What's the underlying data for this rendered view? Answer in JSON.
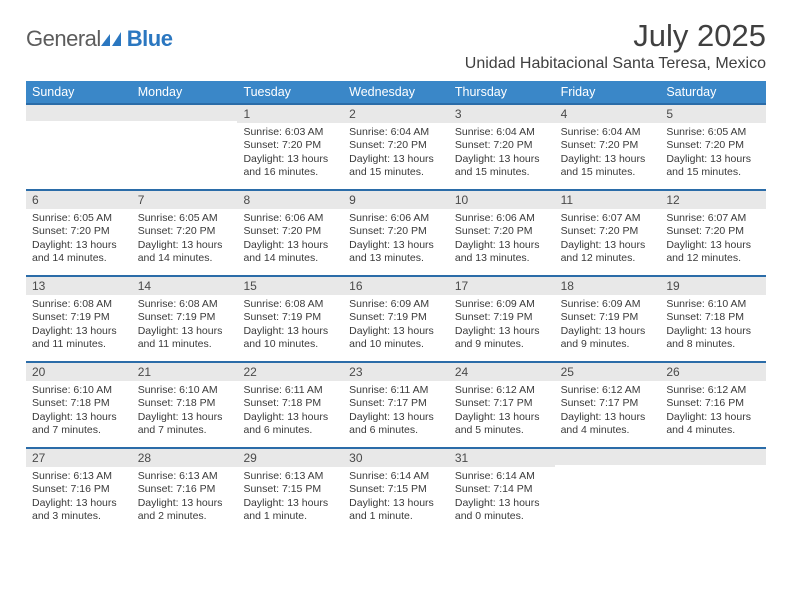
{
  "logo": {
    "text_general": "General",
    "text_blue": "Blue",
    "icon_fill": "#2b77c0"
  },
  "header": {
    "month_title": "July 2025",
    "location": "Unidad Habitacional Santa Teresa, Mexico"
  },
  "styling": {
    "header_bg": "#3a87c8",
    "header_fg": "#ffffff",
    "daynum_bg": "#e8e8e8",
    "daynum_border": "#2b6ca8",
    "body_text": "#3a3a3a",
    "title_color": "#404040"
  },
  "days_of_week": [
    "Sunday",
    "Monday",
    "Tuesday",
    "Wednesday",
    "Thursday",
    "Friday",
    "Saturday"
  ],
  "weeks": [
    [
      {
        "n": "",
        "sunrise": "",
        "sunset": "",
        "daylight": ""
      },
      {
        "n": "",
        "sunrise": "",
        "sunset": "",
        "daylight": ""
      },
      {
        "n": "1",
        "sunrise": "Sunrise: 6:03 AM",
        "sunset": "Sunset: 7:20 PM",
        "daylight": "Daylight: 13 hours and 16 minutes."
      },
      {
        "n": "2",
        "sunrise": "Sunrise: 6:04 AM",
        "sunset": "Sunset: 7:20 PM",
        "daylight": "Daylight: 13 hours and 15 minutes."
      },
      {
        "n": "3",
        "sunrise": "Sunrise: 6:04 AM",
        "sunset": "Sunset: 7:20 PM",
        "daylight": "Daylight: 13 hours and 15 minutes."
      },
      {
        "n": "4",
        "sunrise": "Sunrise: 6:04 AM",
        "sunset": "Sunset: 7:20 PM",
        "daylight": "Daylight: 13 hours and 15 minutes."
      },
      {
        "n": "5",
        "sunrise": "Sunrise: 6:05 AM",
        "sunset": "Sunset: 7:20 PM",
        "daylight": "Daylight: 13 hours and 15 minutes."
      }
    ],
    [
      {
        "n": "6",
        "sunrise": "Sunrise: 6:05 AM",
        "sunset": "Sunset: 7:20 PM",
        "daylight": "Daylight: 13 hours and 14 minutes."
      },
      {
        "n": "7",
        "sunrise": "Sunrise: 6:05 AM",
        "sunset": "Sunset: 7:20 PM",
        "daylight": "Daylight: 13 hours and 14 minutes."
      },
      {
        "n": "8",
        "sunrise": "Sunrise: 6:06 AM",
        "sunset": "Sunset: 7:20 PM",
        "daylight": "Daylight: 13 hours and 14 minutes."
      },
      {
        "n": "9",
        "sunrise": "Sunrise: 6:06 AM",
        "sunset": "Sunset: 7:20 PM",
        "daylight": "Daylight: 13 hours and 13 minutes."
      },
      {
        "n": "10",
        "sunrise": "Sunrise: 6:06 AM",
        "sunset": "Sunset: 7:20 PM",
        "daylight": "Daylight: 13 hours and 13 minutes."
      },
      {
        "n": "11",
        "sunrise": "Sunrise: 6:07 AM",
        "sunset": "Sunset: 7:20 PM",
        "daylight": "Daylight: 13 hours and 12 minutes."
      },
      {
        "n": "12",
        "sunrise": "Sunrise: 6:07 AM",
        "sunset": "Sunset: 7:20 PM",
        "daylight": "Daylight: 13 hours and 12 minutes."
      }
    ],
    [
      {
        "n": "13",
        "sunrise": "Sunrise: 6:08 AM",
        "sunset": "Sunset: 7:19 PM",
        "daylight": "Daylight: 13 hours and 11 minutes."
      },
      {
        "n": "14",
        "sunrise": "Sunrise: 6:08 AM",
        "sunset": "Sunset: 7:19 PM",
        "daylight": "Daylight: 13 hours and 11 minutes."
      },
      {
        "n": "15",
        "sunrise": "Sunrise: 6:08 AM",
        "sunset": "Sunset: 7:19 PM",
        "daylight": "Daylight: 13 hours and 10 minutes."
      },
      {
        "n": "16",
        "sunrise": "Sunrise: 6:09 AM",
        "sunset": "Sunset: 7:19 PM",
        "daylight": "Daylight: 13 hours and 10 minutes."
      },
      {
        "n": "17",
        "sunrise": "Sunrise: 6:09 AM",
        "sunset": "Sunset: 7:19 PM",
        "daylight": "Daylight: 13 hours and 9 minutes."
      },
      {
        "n": "18",
        "sunrise": "Sunrise: 6:09 AM",
        "sunset": "Sunset: 7:19 PM",
        "daylight": "Daylight: 13 hours and 9 minutes."
      },
      {
        "n": "19",
        "sunrise": "Sunrise: 6:10 AM",
        "sunset": "Sunset: 7:18 PM",
        "daylight": "Daylight: 13 hours and 8 minutes."
      }
    ],
    [
      {
        "n": "20",
        "sunrise": "Sunrise: 6:10 AM",
        "sunset": "Sunset: 7:18 PM",
        "daylight": "Daylight: 13 hours and 7 minutes."
      },
      {
        "n": "21",
        "sunrise": "Sunrise: 6:10 AM",
        "sunset": "Sunset: 7:18 PM",
        "daylight": "Daylight: 13 hours and 7 minutes."
      },
      {
        "n": "22",
        "sunrise": "Sunrise: 6:11 AM",
        "sunset": "Sunset: 7:18 PM",
        "daylight": "Daylight: 13 hours and 6 minutes."
      },
      {
        "n": "23",
        "sunrise": "Sunrise: 6:11 AM",
        "sunset": "Sunset: 7:17 PM",
        "daylight": "Daylight: 13 hours and 6 minutes."
      },
      {
        "n": "24",
        "sunrise": "Sunrise: 6:12 AM",
        "sunset": "Sunset: 7:17 PM",
        "daylight": "Daylight: 13 hours and 5 minutes."
      },
      {
        "n": "25",
        "sunrise": "Sunrise: 6:12 AM",
        "sunset": "Sunset: 7:17 PM",
        "daylight": "Daylight: 13 hours and 4 minutes."
      },
      {
        "n": "26",
        "sunrise": "Sunrise: 6:12 AM",
        "sunset": "Sunset: 7:16 PM",
        "daylight": "Daylight: 13 hours and 4 minutes."
      }
    ],
    [
      {
        "n": "27",
        "sunrise": "Sunrise: 6:13 AM",
        "sunset": "Sunset: 7:16 PM",
        "daylight": "Daylight: 13 hours and 3 minutes."
      },
      {
        "n": "28",
        "sunrise": "Sunrise: 6:13 AM",
        "sunset": "Sunset: 7:16 PM",
        "daylight": "Daylight: 13 hours and 2 minutes."
      },
      {
        "n": "29",
        "sunrise": "Sunrise: 6:13 AM",
        "sunset": "Sunset: 7:15 PM",
        "daylight": "Daylight: 13 hours and 1 minute."
      },
      {
        "n": "30",
        "sunrise": "Sunrise: 6:14 AM",
        "sunset": "Sunset: 7:15 PM",
        "daylight": "Daylight: 13 hours and 1 minute."
      },
      {
        "n": "31",
        "sunrise": "Sunrise: 6:14 AM",
        "sunset": "Sunset: 7:14 PM",
        "daylight": "Daylight: 13 hours and 0 minutes."
      },
      {
        "n": "",
        "sunrise": "",
        "sunset": "",
        "daylight": ""
      },
      {
        "n": "",
        "sunrise": "",
        "sunset": "",
        "daylight": ""
      }
    ]
  ]
}
